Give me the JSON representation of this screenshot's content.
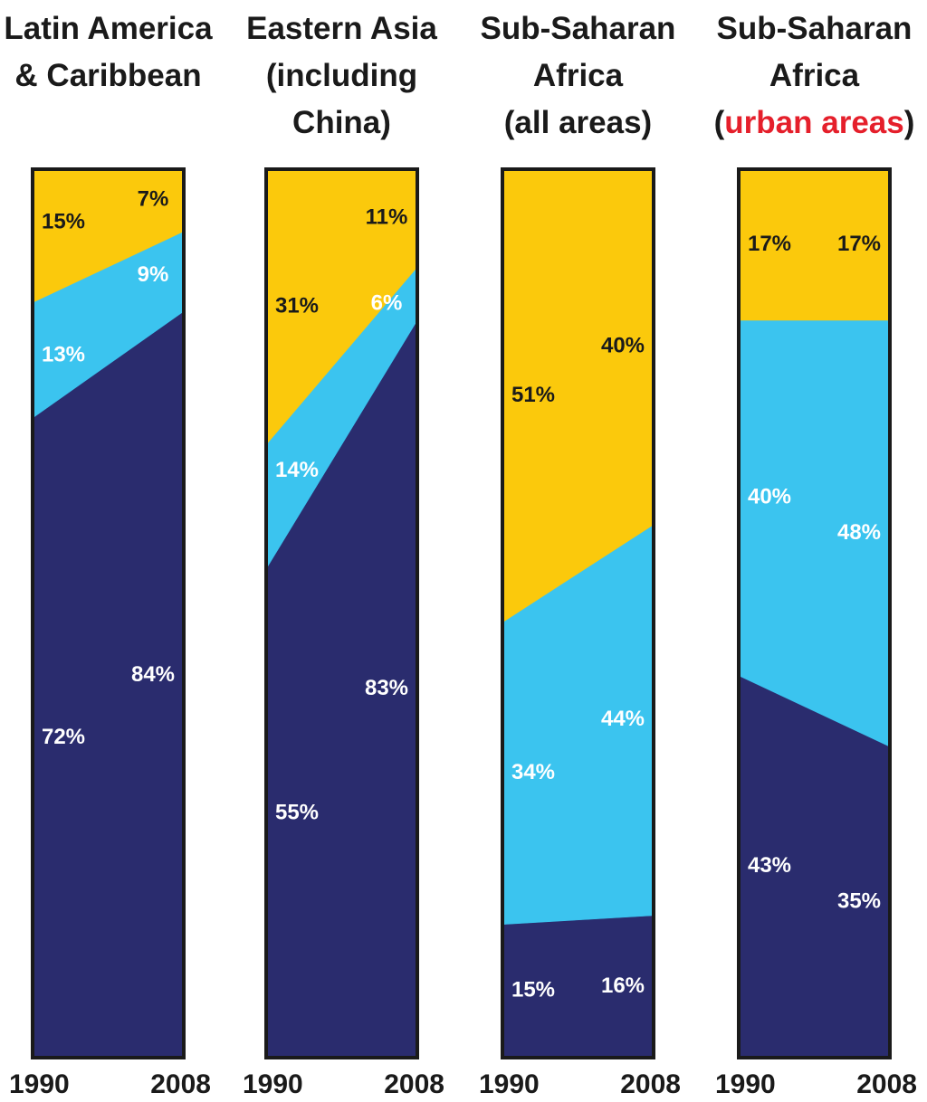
{
  "colors": {
    "bottom": "#2a2c6e",
    "middle": "#3bc4ef",
    "top": "#fbc90c",
    "border": "#1a1a1a",
    "label_light": "#ffffff",
    "label_dark": "#1a1a1a",
    "highlight": "#e51f2b"
  },
  "chart_data": [
    {
      "type": "area",
      "title_lines": [
        [
          "Latin America"
        ],
        [
          "& Caribbean"
        ]
      ],
      "x": [
        "1990",
        "2008"
      ],
      "series": [
        {
          "values": [
            72,
            84
          ]
        },
        {
          "values": [
            13,
            9
          ]
        },
        {
          "values": [
            15,
            7
          ]
        }
      ],
      "ylim": [
        0,
        100
      ],
      "labels": [
        {
          "text": "72%",
          "side": "left",
          "y": 36
        },
        {
          "text": "84%",
          "side": "right",
          "y": 43
        },
        {
          "text": "13%",
          "side": "left",
          "y": 79
        },
        {
          "text": "9%",
          "side": "right",
          "y": 88
        },
        {
          "text": "15%",
          "side": "left",
          "y": 94
        },
        {
          "text": "7%",
          "side": "right",
          "y": 96.5
        }
      ]
    },
    {
      "type": "area",
      "title_lines": [
        [
          "Eastern Asia"
        ],
        [
          "(including"
        ],
        [
          "China)"
        ]
      ],
      "x": [
        "1990",
        "2008"
      ],
      "series": [
        {
          "values": [
            55,
            83
          ]
        },
        {
          "values": [
            14,
            6
          ]
        },
        {
          "values": [
            31,
            11
          ]
        }
      ],
      "ylim": [
        0,
        100
      ],
      "labels": [
        {
          "text": "55%",
          "side": "left",
          "y": 27.5
        },
        {
          "text": "83%",
          "side": "right",
          "y": 41.5
        },
        {
          "text": "14%",
          "side": "left",
          "y": 66
        },
        {
          "text": "6%",
          "side": "right",
          "y": 84.8
        },
        {
          "text": "31%",
          "side": "left",
          "y": 84.5
        },
        {
          "text": "11%",
          "side": "right",
          "y": 94.5
        }
      ]
    },
    {
      "type": "area",
      "title_lines": [
        [
          "Sub-Saharan"
        ],
        [
          "Africa"
        ],
        [
          "(all areas)"
        ]
      ],
      "x": [
        "1990",
        "2008"
      ],
      "series": [
        {
          "values": [
            15,
            16
          ]
        },
        {
          "values": [
            34,
            44
          ]
        },
        {
          "values": [
            51,
            40
          ]
        }
      ],
      "ylim": [
        0,
        100
      ],
      "labels": [
        {
          "text": "15%",
          "side": "left",
          "y": 7.5
        },
        {
          "text": "16%",
          "side": "right",
          "y": 8
        },
        {
          "text": "34%",
          "side": "left",
          "y": 32
        },
        {
          "text": "44%",
          "side": "right",
          "y": 38
        },
        {
          "text": "51%",
          "side": "left",
          "y": 74.5
        },
        {
          "text": "40%",
          "side": "right",
          "y": 80
        }
      ]
    },
    {
      "type": "area",
      "title_lines": [
        [
          "Sub-Saharan"
        ],
        [
          "Africa"
        ],
        [
          "(",
          {
            "hl": "urban areas"
          },
          ")"
        ]
      ],
      "x": [
        "1990",
        "2008"
      ],
      "series": [
        {
          "values": [
            43,
            35
          ]
        },
        {
          "values": [
            40,
            48
          ]
        },
        {
          "values": [
            17,
            17
          ]
        }
      ],
      "ylim": [
        0,
        100
      ],
      "labels": [
        {
          "text": "43%",
          "side": "left",
          "y": 21.5
        },
        {
          "text": "35%",
          "side": "right",
          "y": 17.5
        },
        {
          "text": "40%",
          "side": "left",
          "y": 63
        },
        {
          "text": "48%",
          "side": "right",
          "y": 59
        },
        {
          "text": "17%",
          "side": "left",
          "y": 91.5
        },
        {
          "text": "17%",
          "side": "right",
          "y": 91.5
        }
      ]
    }
  ]
}
